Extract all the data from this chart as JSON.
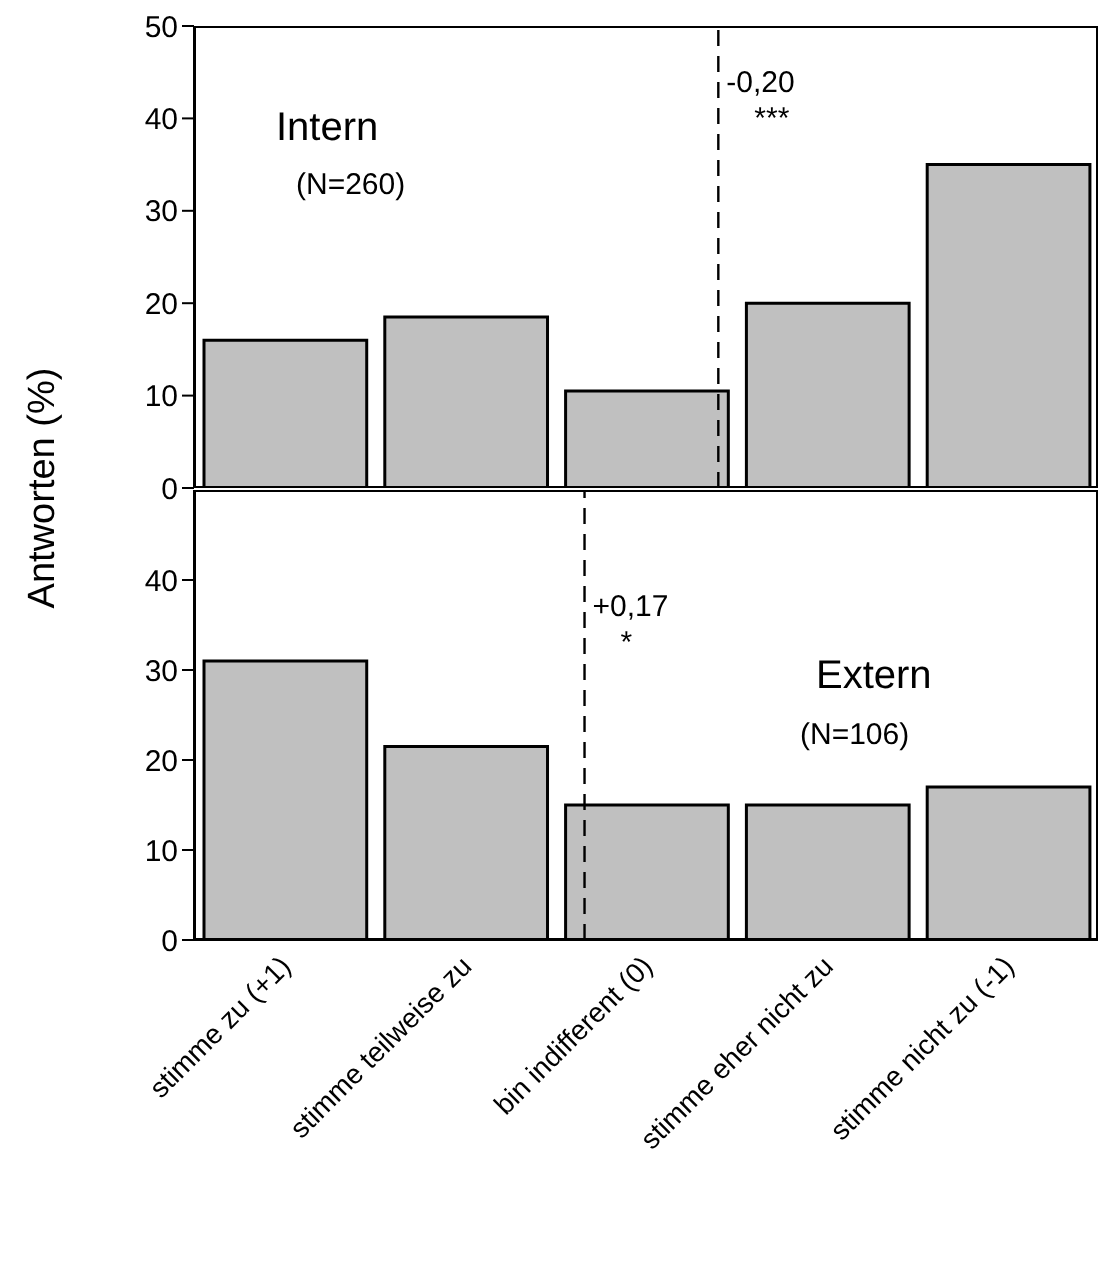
{
  "chart_data": [
    {
      "type": "bar",
      "ylabel": "Antworten (%)",
      "x": [
        1,
        0.5,
        0,
        -0.5,
        -1
      ],
      "xlim": [
        1.25,
        -1.25
      ],
      "ylim": [
        0,
        50
      ],
      "yticks": [
        0,
        10,
        20,
        30,
        40,
        50
      ],
      "tick_labels": "y",
      "color": "#c0c0c0",
      "values": [
        16,
        18.5,
        10.5,
        20,
        35
      ],
      "ref_lines": [
        {
          "axis": "x",
          "value": -0.2,
          "label": "-0,20\n***",
          "line_style": "dashed",
          "color": "#000000"
        }
      ],
      "annotations": [
        "Intern",
        "(N=260)"
      ]
    },
    {
      "type": "bar",
      "x": [
        1,
        0.5,
        0,
        -0.5,
        -1
      ],
      "xlim": [
        1.25,
        -1.25
      ],
      "xticks": [
        {
          "value": 1,
          "label": "stimme zu (+1)"
        },
        {
          "value": 0.5,
          "label": "stimme teilweise zu"
        },
        {
          "value": 0,
          "label": "bin indifferent (0)"
        },
        {
          "value": -0.5,
          "label": "stimme eher nicht zu"
        },
        {
          "value": -1,
          "label": "stimme nicht zu (-1)"
        }
      ],
      "ylim": [
        0,
        50
      ],
      "yticks": [
        0,
        10,
        20,
        30,
        40
      ],
      "color": "#c0c0c0",
      "values": [
        31,
        21.5,
        15,
        15,
        17
      ],
      "ref_lines": [
        {
          "axis": "x",
          "value": 0.17,
          "label": "+0,17\n*",
          "line_style": "dashed",
          "color": "#000000"
        }
      ],
      "annotations": [
        "Extern",
        "(N=106)"
      ]
    }
  ]
}
